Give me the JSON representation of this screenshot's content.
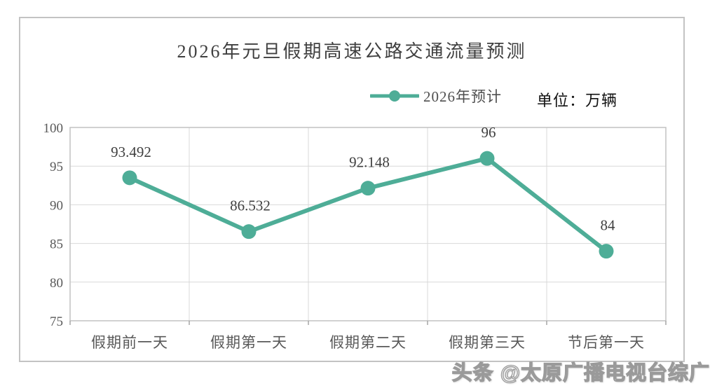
{
  "chart_data": {
    "type": "line",
    "title": "2026年元旦假期高速公路交通流量预测",
    "unit_label": "单位：万辆",
    "categories": [
      "假期前一天",
      "假期第一天",
      "假期第二天",
      "假期第三天",
      "节后第一天"
    ],
    "series": [
      {
        "name": "2026年预计",
        "values": [
          93.492,
          86.532,
          92.148,
          96,
          84
        ],
        "labels": [
          "93.492",
          "86.532",
          "92.148",
          "96",
          "84"
        ]
      }
    ],
    "ylim": [
      75,
      100
    ],
    "yticks": [
      75,
      80,
      85,
      90,
      95,
      100
    ],
    "grid": true,
    "legend_position": "top-center",
    "colors": {
      "line": "#4EAD97",
      "grid": "#d9d9d9",
      "frame": "#c2c2c2",
      "tick": "#a6a6a6",
      "axis_text": "#595959",
      "title_text": "#3f3f3f",
      "data_label": "#3f3f3f",
      "card_border": "#c3c3c3",
      "watermark_fill": "#ffffff",
      "watermark_outline": "#9a9a9a"
    }
  },
  "watermark": {
    "text": "头条 @太原广播电视台综广"
  }
}
